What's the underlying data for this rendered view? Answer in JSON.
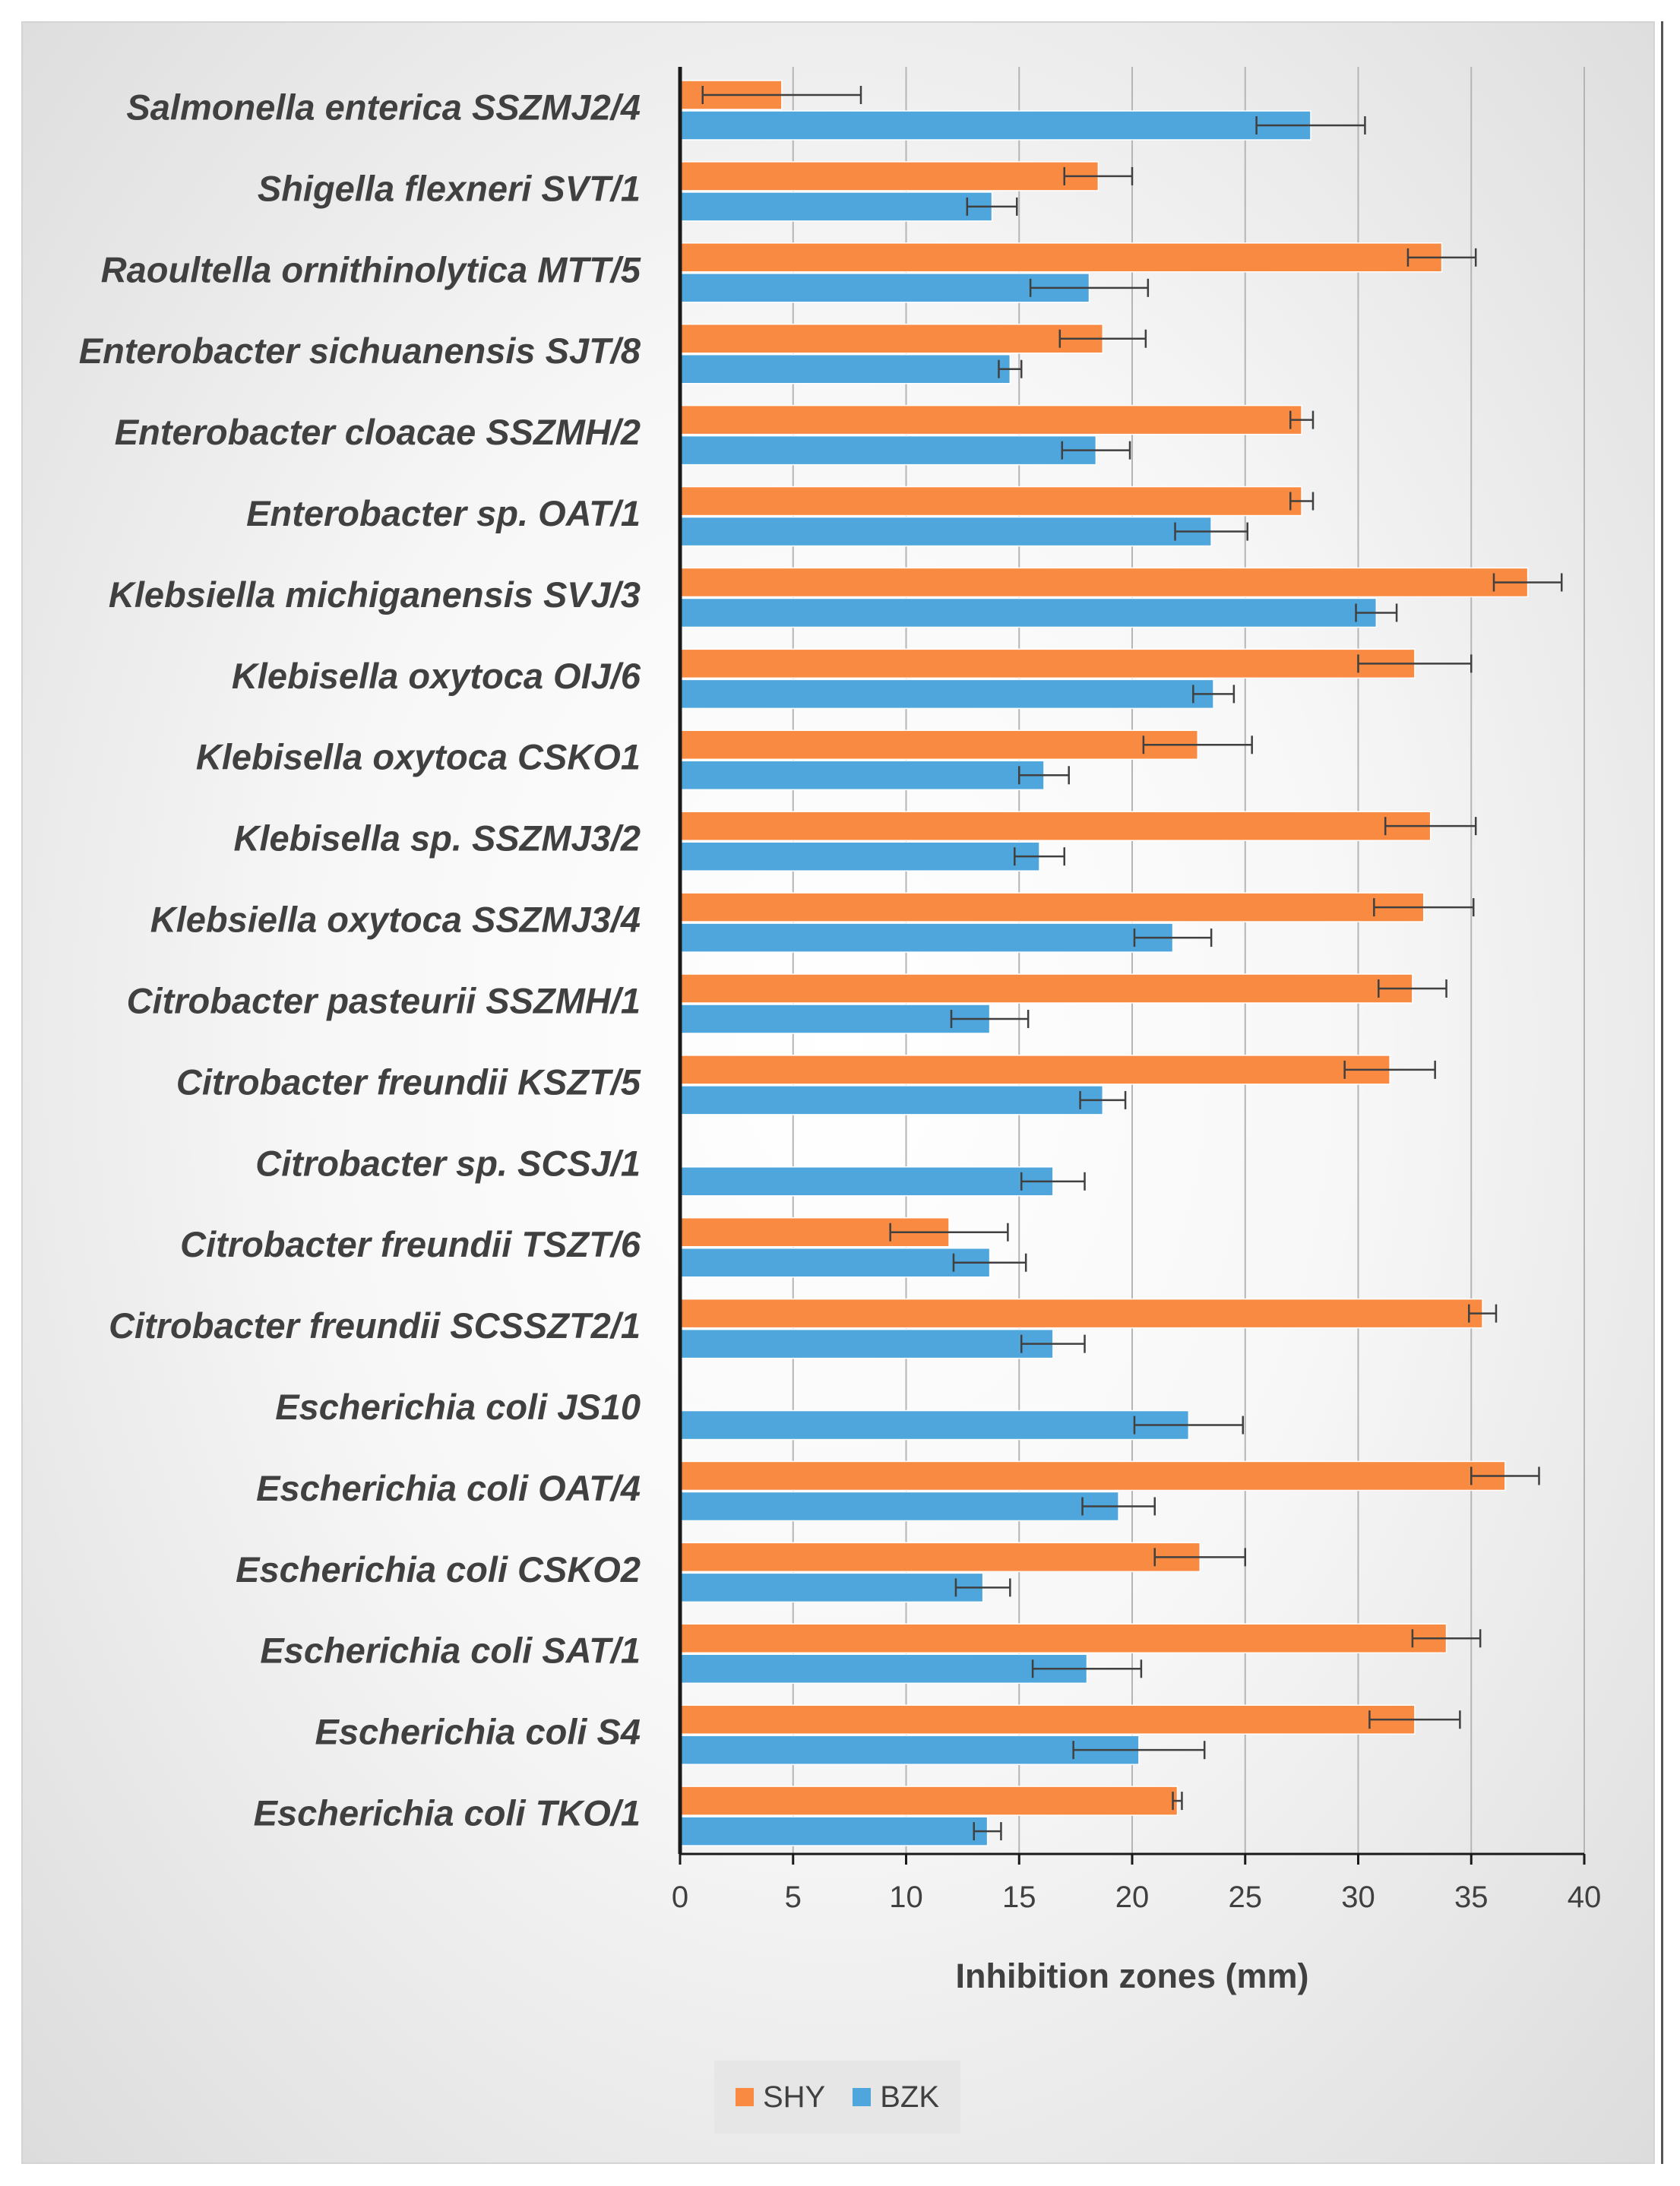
{
  "chart_data": {
    "type": "bar",
    "orientation": "horizontal",
    "categories": [
      "Salmonella enterica SSZMJ2/4",
      "Shigella flexneri SVT/1",
      "Raoultella ornithinolytica MTT/5",
      "Enterobacter sichuanensis SJT/8",
      "Enterobacter cloacae SSZMH/2",
      "Enterobacter sp. OAT/1",
      "Klebsiella michiganensis SVJ/3",
      "Klebisella oxytoca OIJ/6",
      "Klebisella oxytoca CSKO1",
      "Klebisella sp. SSZMJ3/2",
      "Klebsiella oxytoca SSZMJ3/4",
      "Citrobacter pasteurii SSZMH/1",
      "Citrobacter freundii KSZT/5",
      "Citrobacter sp. SCSJ/1",
      "Citrobacter freundii TSZT/6",
      "Citrobacter freundii SCSSZT2/1",
      "Escherichia coli JS10",
      "Escherichia coli OAT/4",
      "Escherichia coli CSKO2",
      "Escherichia coli SAT/1",
      "Escherichia coli S4",
      "Escherichia coli TKO/1"
    ],
    "series": [
      {
        "name": "SHY",
        "color": "#f98a42",
        "values": [
          4.5,
          18.5,
          33.7,
          18.7,
          27.5,
          27.5,
          37.5,
          32.5,
          22.9,
          33.2,
          32.9,
          32.4,
          31.4,
          null,
          11.9,
          35.5,
          null,
          36.5,
          23.0,
          33.9,
          32.5,
          22.0
        ],
        "errors": [
          3.5,
          1.5,
          1.5,
          1.9,
          0.5,
          0.5,
          1.5,
          2.5,
          2.4,
          2.0,
          2.2,
          1.5,
          2.0,
          null,
          2.6,
          0.6,
          null,
          1.5,
          2.0,
          1.5,
          2.0,
          0.2
        ]
      },
      {
        "name": "BZK",
        "color": "#4ea6dc",
        "values": [
          27.9,
          13.8,
          18.1,
          14.6,
          18.4,
          23.5,
          30.8,
          23.6,
          16.1,
          15.9,
          21.8,
          13.7,
          18.7,
          16.5,
          13.7,
          16.5,
          22.5,
          19.4,
          13.4,
          18.0,
          20.3,
          13.6
        ],
        "errors": [
          2.4,
          1.1,
          2.6,
          0.5,
          1.5,
          1.6,
          0.9,
          0.9,
          1.1,
          1.1,
          1.7,
          1.7,
          1.0,
          1.4,
          1.6,
          1.4,
          2.4,
          1.6,
          1.2,
          2.4,
          2.9,
          0.6
        ]
      }
    ],
    "title": "",
    "xlabel": "Inhibition zones (mm)",
    "ylabel": "",
    "xlim": [
      0,
      40
    ],
    "xticks": [
      "0",
      "5",
      "10",
      "15",
      "20",
      "25",
      "30",
      "35",
      "40"
    ],
    "grid": true,
    "legend_position": "bottom",
    "legend": [
      "SHY",
      "BZK"
    ]
  }
}
